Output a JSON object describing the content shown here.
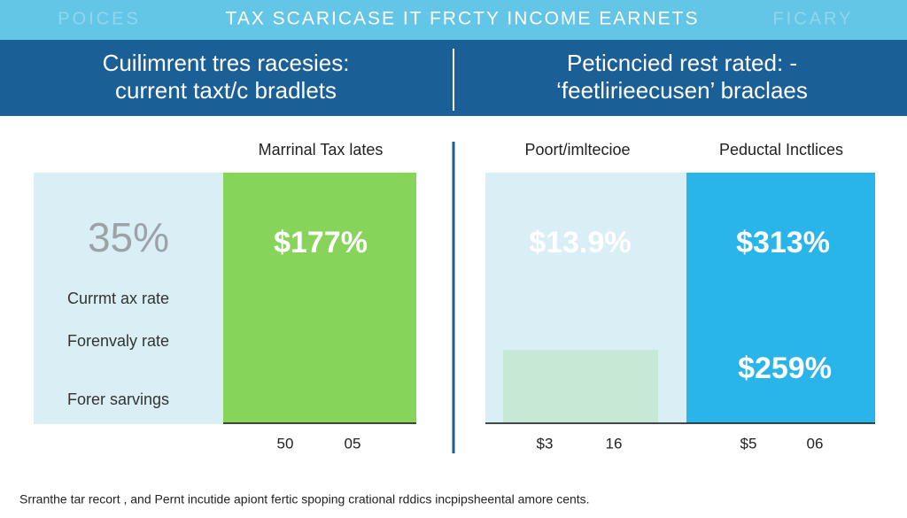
{
  "banner": {
    "left": "POICES",
    "title": "TAX SCARICASE IT FRCTY INCOME EARNETS",
    "right": "FICARY"
  },
  "header": {
    "left": [
      "Cuilimrent tres racesies:",
      "current taxt/c bradlets"
    ],
    "right": [
      "Peticncied rest rated: -",
      "‘feetlirieecusen’ braclaes"
    ]
  },
  "left_panel": {
    "heading": "Marrinal Tax lates",
    "big_value": "35%",
    "green_value": "$177%",
    "labels": [
      "Currmt ax rate",
      "Forenvaly rate",
      "Forer sarvings"
    ],
    "axis_labels": [
      "50",
      "05"
    ]
  },
  "right_panel": {
    "heading_left": "Poort/imltecioe",
    "heading_right": "Peductal Inctlices",
    "left_value": "$13.9%",
    "right_values": [
      "$313%",
      "$259%"
    ],
    "axis_labels": [
      "$3",
      "16",
      "$5",
      "06"
    ]
  },
  "footer": "Srranthe tar recort , and Pernt incutide apiont fertic spoping crational rddics incpipsheental amore cents."
}
